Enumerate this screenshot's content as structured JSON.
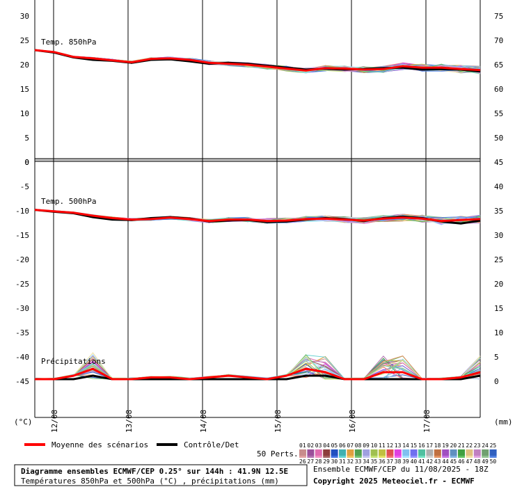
{
  "chart_data": {
    "type": "line",
    "dates": [
      "12/08",
      "13/08",
      "14/08",
      "15/08",
      "16/08",
      "17/08"
    ],
    "units_left": "(°C)",
    "units_right": "(mm)",
    "panels": [
      {
        "title": "Temp. 850hPa",
        "left_ticks": [
          30,
          25,
          20,
          15,
          10,
          5,
          0
        ],
        "right_ticks": [
          75,
          70,
          65,
          60,
          55,
          50
        ],
        "ylim": [
          0,
          33
        ],
        "mean": [
          23.0,
          22.6,
          21.6,
          21.3,
          20.9,
          20.5,
          21.2,
          21.3,
          21.0,
          20.4,
          20.2,
          20.0,
          19.6,
          19.2,
          18.8,
          19.3,
          19.2,
          19.0,
          19.1,
          19.7,
          19.4,
          19.4,
          19.1,
          18.9
        ],
        "control": [
          23.0,
          22.5,
          21.5,
          21.0,
          20.8,
          20.4,
          21.0,
          21.1,
          20.7,
          20.2,
          20.4,
          20.2,
          19.8,
          19.4,
          19.0,
          19.2,
          19.0,
          19.1,
          19.3,
          19.4,
          19.0,
          19.1,
          19.0,
          18.6
        ]
      },
      {
        "title": "Temp. 500hPa",
        "left_ticks": [
          0,
          -5,
          -10,
          -15,
          -20,
          -25,
          -30,
          -35,
          -40,
          -45
        ],
        "right_ticks": [
          45,
          40,
          35,
          30,
          25,
          20,
          15,
          10,
          5,
          0
        ],
        "ylim": [
          -40.6,
          0
        ],
        "mean": [
          -9.8,
          -10.1,
          -10.4,
          -11.0,
          -11.5,
          -11.8,
          -11.7,
          -11.4,
          -11.7,
          -12.1,
          -11.8,
          -11.8,
          -12.1,
          -12.0,
          -11.7,
          -11.6,
          -11.8,
          -12.0,
          -11.6,
          -11.4,
          -11.6,
          -12.1,
          -11.9,
          -11.7
        ],
        "control": [
          -9.8,
          -10.2,
          -10.5,
          -11.3,
          -11.8,
          -11.9,
          -11.5,
          -11.3,
          -11.6,
          -12.2,
          -12.0,
          -11.9,
          -12.3,
          -12.2,
          -11.8,
          -11.5,
          -11.7,
          -12.1,
          -11.5,
          -11.2,
          -11.5,
          -12.2,
          -12.6,
          -12.0
        ]
      },
      {
        "title": "Précipitations",
        "mean": [
          0,
          0,
          0.1,
          0.3,
          0,
          0,
          0.05,
          0.05,
          0,
          0.05,
          0.1,
          0.05,
          0,
          0.1,
          0.3,
          0.2,
          0,
          0,
          0.2,
          0.2,
          0,
          0,
          0.05,
          0.2
        ],
        "control": [
          0,
          0,
          0,
          0.1,
          0,
          0,
          0,
          0,
          0,
          0,
          0,
          0,
          0,
          0,
          0.1,
          0.1,
          0,
          0,
          0,
          0,
          0,
          0,
          0,
          0.1
        ]
      }
    ]
  },
  "legend": {
    "mean_label": "Moyenne des scénarios",
    "control_label": "Contrôle/Det",
    "perts_label": "50 Perts.",
    "colors_mean": "#ff0000",
    "colors_control": "#000000",
    "members_row1": [
      "01",
      "02",
      "03",
      "04",
      "05",
      "06",
      "07",
      "08",
      "09",
      "10",
      "11",
      "12",
      "13",
      "14",
      "15",
      "16",
      "17",
      "18",
      "19",
      "20",
      "21",
      "22",
      "23",
      "24",
      "25"
    ],
    "members_row2": [
      "26",
      "27",
      "28",
      "29",
      "30",
      "31",
      "32",
      "33",
      "34",
      "35",
      "36",
      "37",
      "38",
      "39",
      "40",
      "41",
      "42",
      "43",
      "44",
      "45",
      "46",
      "47",
      "48",
      "49",
      "50"
    ],
    "swatch_colors_row1": [
      "#c88c8c",
      "#9a4f9a",
      "#e06ab0",
      "#8c3c3c",
      "#2050c0",
      "#40b0b0",
      "#e0a040",
      "#50a050",
      "#a0a0e0",
      "#a0c050",
      "#c0c040",
      "#e05050",
      "#e040e0",
      "#80c0f0",
      "#7070f0",
      "#50c0a0",
      "#b0b0b0",
      "#c07040",
      "#a050c0",
      "#6090c0",
      "#40a040",
      "#e0c080",
      "#c080c0",
      "#70a070",
      "#3060c0"
    ],
    "swatch_colors_row2": [
      "#e0a0a0",
      "#b070b0",
      "#f090c0",
      "#a06060",
      "#4070e0",
      "#60d0d0",
      "#f0c060",
      "#70c070",
      "#c0c0f0",
      "#c0e070",
      "#e0e060",
      "#f07070",
      "#f060f0",
      "#a0e0ff",
      "#9090ff",
      "#70e0c0",
      "#d0d0d0",
      "#e09060",
      "#c070e0",
      "#80b0e0",
      "#60c060",
      "#f0e0a0",
      "#e0a0e0",
      "#90c090",
      "#5080e0"
    ]
  },
  "footer": {
    "box_line1": "Diagramme ensembles ECMWF/CEP 0.25° sur 144h : 41.9N 12.5E",
    "box_line2": "Températures 850hPa et 500hPa (°C) , précipitations (mm)",
    "right_line1": "Ensemble ECMWF/CEP du 11/08/2025 - 18Z",
    "right_line2": "Copyright 2025 Meteociel.fr - ECMWF"
  }
}
